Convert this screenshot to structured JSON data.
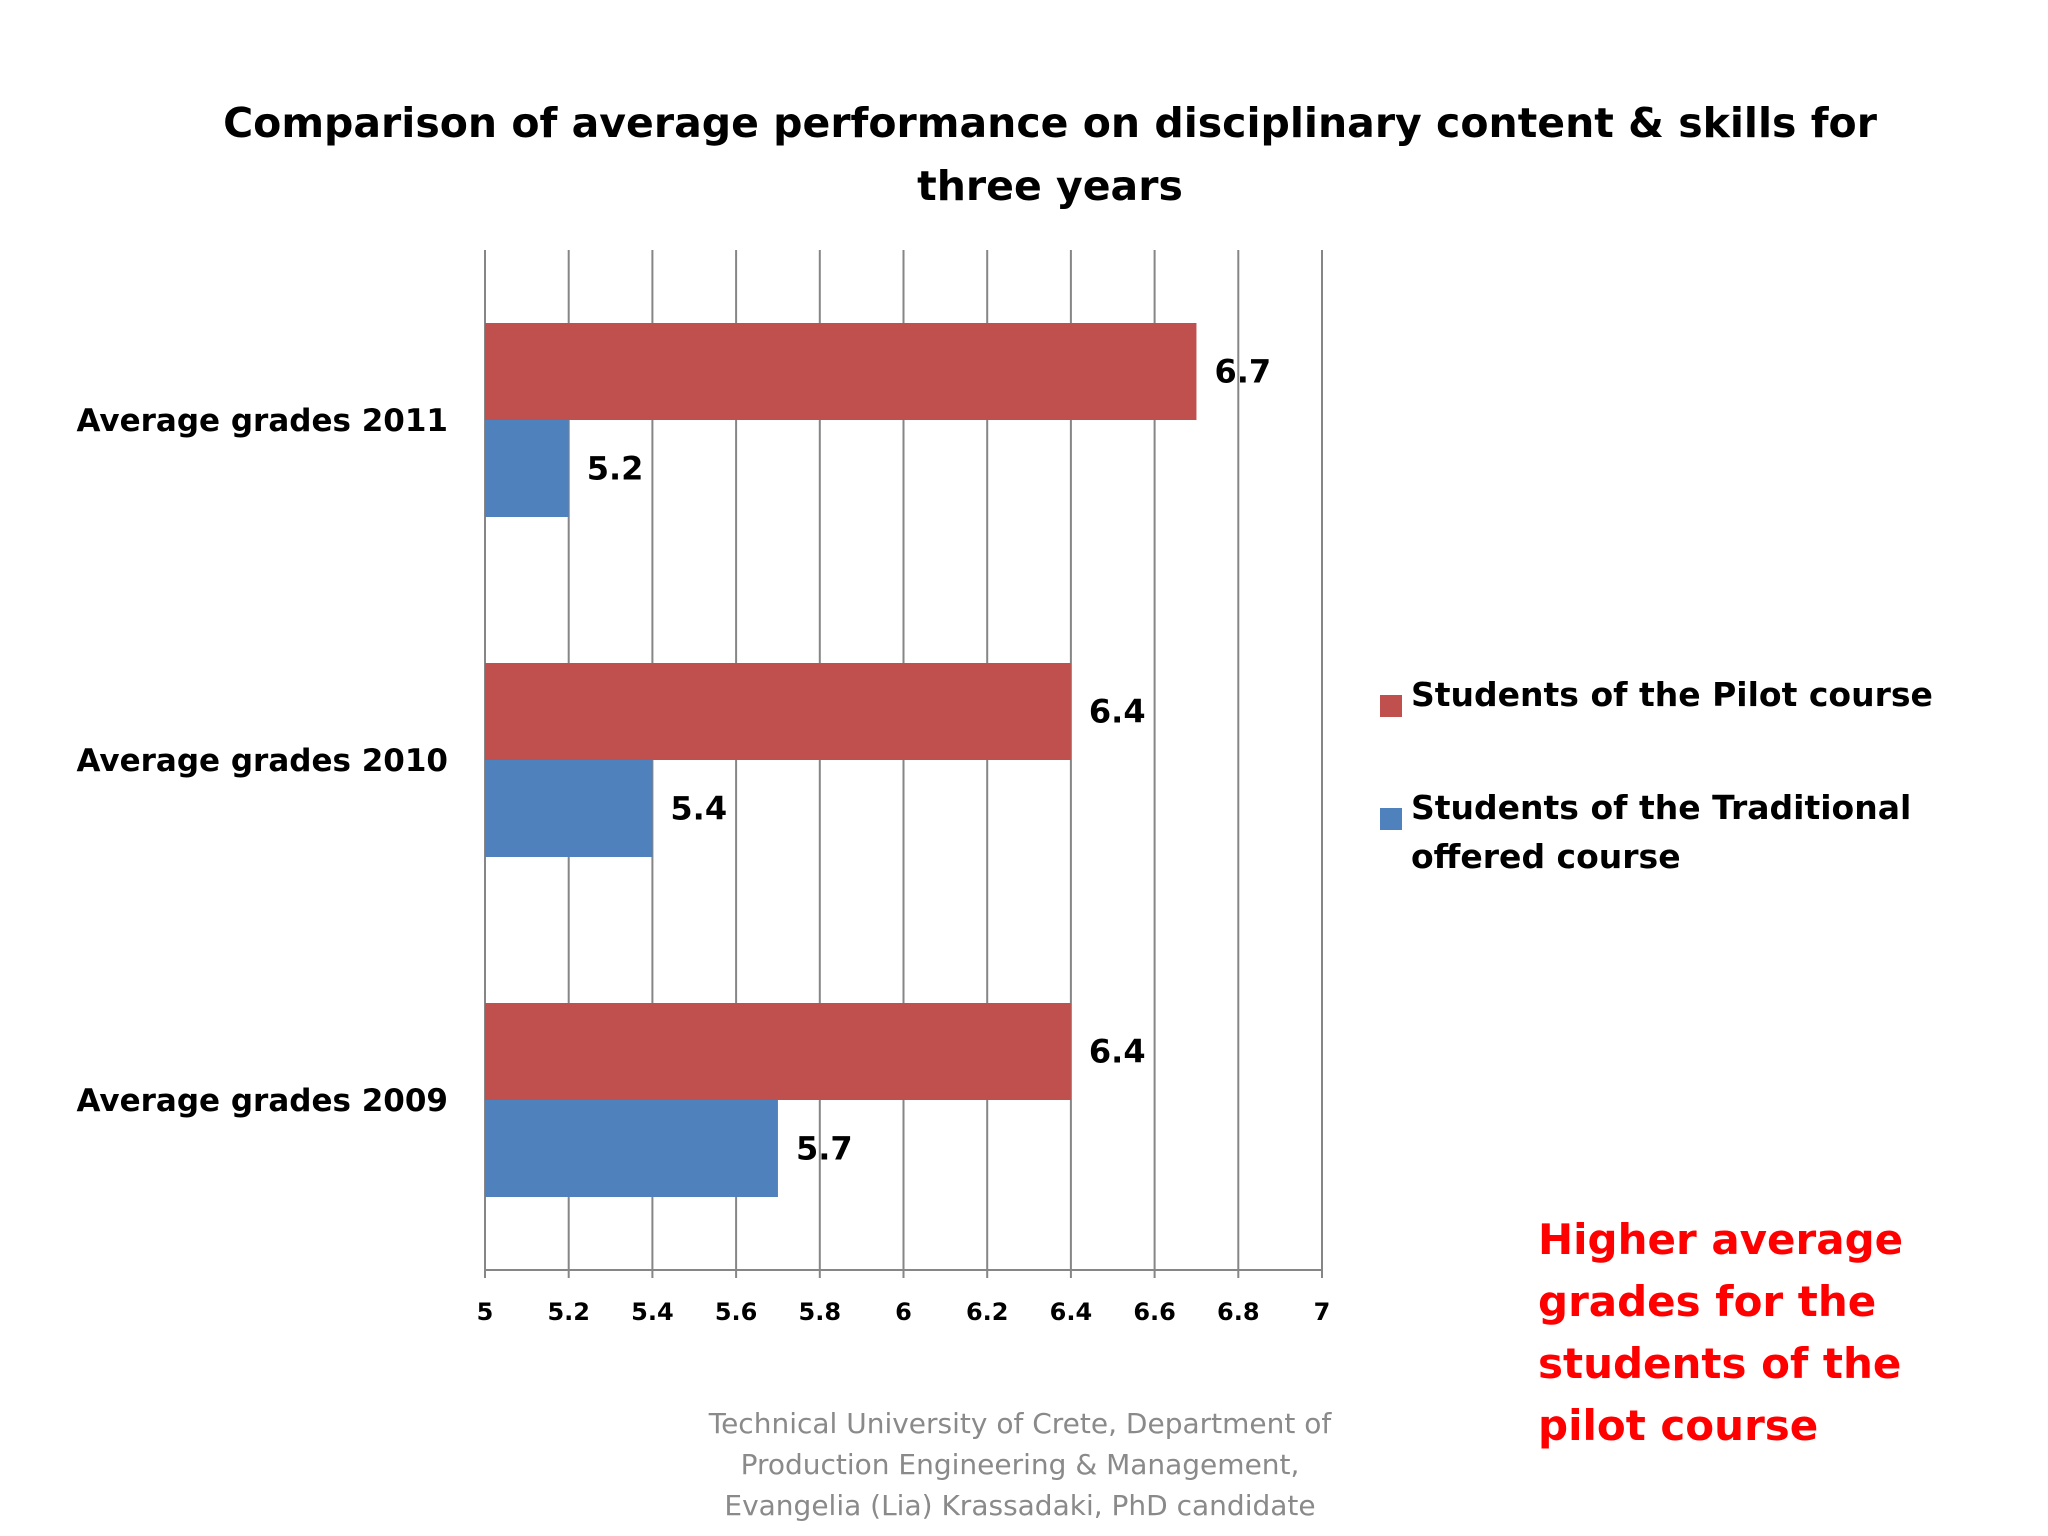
{
  "chart_data": {
    "type": "bar",
    "orientation": "horizontal",
    "title": "Comparison of average performance on disciplinary content & skills for three years",
    "categories": [
      "Average grades 2011",
      "Average grades 2010",
      "Average grades 2009"
    ],
    "series": [
      {
        "name": "Students of the Pilot course",
        "color": "#c0504d",
        "values": [
          6.7,
          6.4,
          6.4
        ],
        "labels": [
          "6.7",
          "6.4",
          "6.4"
        ]
      },
      {
        "name": "Students of the Traditional offered course",
        "color": "#4f81bd",
        "values": [
          5.2,
          5.4,
          5.7
        ],
        "labels": [
          "5.2",
          "5.4",
          "5.7"
        ]
      }
    ],
    "xlim": [
      5,
      7
    ],
    "x_ticks": [
      "5",
      "5.2",
      "5.4",
      "5.6",
      "5.8",
      "6",
      "6.2",
      "6.4",
      "6.6",
      "6.8",
      "7"
    ],
    "grid": "vertical",
    "legend_position": "right",
    "xlabel": "",
    "ylabel": ""
  },
  "note": "Higher average grades for the students of the pilot course",
  "note_color": "#ff0000",
  "footer": "Technical University of Crete, Department of Production Engineering & Management, Evangelia (Lia) Krassadaki, PhD candidate"
}
